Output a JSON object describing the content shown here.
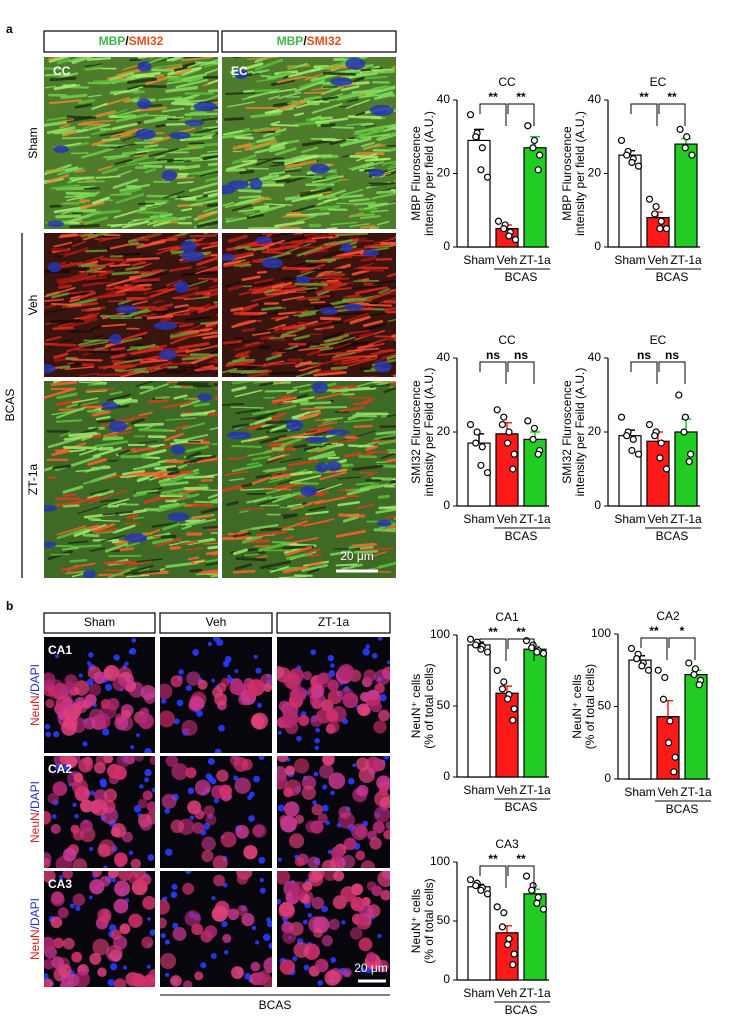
{
  "panel_a": {
    "label": "a",
    "headers": [
      {
        "stain1": "MBP",
        "sep": "/",
        "stain2": "SMI32"
      },
      {
        "stain1": "MBP",
        "sep": "/",
        "stain2": "SMI32"
      }
    ],
    "regions": [
      "CC",
      "EC"
    ],
    "rows": [
      "Sham",
      "Veh",
      "ZT-1a"
    ],
    "group": "BCAS",
    "scale_bar": "20 μm"
  },
  "panel_b": {
    "label": "b",
    "columns": [
      "Sham",
      "Veh",
      "ZT-1a"
    ],
    "regions": [
      "CA1",
      "CA2",
      "CA3"
    ],
    "row_stains": [
      {
        "marker": "NeuN",
        "counterstain": "/DAPI"
      },
      {
        "marker": "NeuN",
        "counterstain": "/DAPI"
      },
      {
        "marker": "NeuN",
        "counterstain": "/DAPI"
      }
    ],
    "group": "BCAS",
    "scale_bar": "20 μm"
  },
  "chart_data": [
    {
      "type": "bar",
      "title": "CC",
      "ylabel": [
        "MBP Fluroscence",
        "intensity per field (A.U.)"
      ],
      "categories": [
        "Sham",
        "Veh",
        "ZT-1a"
      ],
      "values": [
        29,
        5,
        27
      ],
      "errors": [
        3,
        1,
        3
      ],
      "points": [
        [
          36,
          31,
          30,
          27,
          21,
          19
        ],
        [
          7,
          6,
          5,
          4,
          3,
          2
        ],
        [
          33,
          29,
          27,
          25,
          21
        ]
      ],
      "colors": [
        "#ffffff",
        "#ff1a1a",
        "#22cc22"
      ],
      "group_label": "BCAS",
      "significance": [
        "**",
        "**"
      ],
      "ylim": [
        0,
        40
      ],
      "yticks": [
        0,
        20,
        40
      ]
    },
    {
      "type": "bar",
      "title": "EC",
      "ylabel": [
        "MBP Fluroscence",
        "intensity per field (A.U.)"
      ],
      "categories": [
        "Sham",
        "Veh",
        "ZT-1a"
      ],
      "values": [
        25,
        8,
        28
      ],
      "errors": [
        1.2,
        1.5,
        1.5
      ],
      "points": [
        [
          29,
          26,
          25,
          24,
          23,
          22
        ],
        [
          13,
          11,
          9,
          7,
          5,
          5
        ],
        [
          32,
          30,
          27,
          25
        ]
      ],
      "colors": [
        "#ffffff",
        "#ff1a1a",
        "#22cc22"
      ],
      "group_label": "BCAS",
      "significance": [
        "**",
        "**"
      ],
      "ylim": [
        0,
        40
      ],
      "yticks": [
        0,
        20,
        40
      ]
    },
    {
      "type": "bar",
      "title": "CC",
      "ylabel": [
        "SMI32 Fluroscence",
        "intensity per Feild (A.U.)"
      ],
      "categories": [
        "Sham",
        "Veh",
        "ZT-1a"
      ],
      "values": [
        17,
        19.5,
        18
      ],
      "errors": [
        2.5,
        3,
        2
      ],
      "points": [
        [
          22,
          20,
          17,
          16,
          11,
          9
        ],
        [
          26,
          24,
          22,
          20,
          17,
          14,
          10
        ],
        [
          23,
          21,
          18,
          15,
          14
        ]
      ],
      "colors": [
        "#ffffff",
        "#ff1a1a",
        "#22cc22"
      ],
      "group_label": "BCAS",
      "significance": [
        "ns",
        "ns"
      ],
      "ylim": [
        0,
        40
      ],
      "yticks": [
        0,
        20,
        40
      ]
    },
    {
      "type": "bar",
      "title": "EC",
      "ylabel": [
        "SMI32 Fluroscence",
        "intensity per Feild (A.U.)"
      ],
      "categories": [
        "Sham",
        "Veh",
        "ZT-1a"
      ],
      "values": [
        19,
        17.5,
        20
      ],
      "errors": [
        1.5,
        2.5,
        3.5
      ],
      "points": [
        [
          24,
          20,
          19,
          18,
          15,
          14
        ],
        [
          22,
          20,
          19,
          17,
          13,
          10
        ],
        [
          30,
          24,
          20,
          14,
          12
        ]
      ],
      "colors": [
        "#ffffff",
        "#ff1a1a",
        "#22cc22"
      ],
      "group_label": "BCAS",
      "significance": [
        "ns",
        "ns"
      ],
      "ylim": [
        0,
        40
      ],
      "yticks": [
        0,
        20,
        40
      ]
    },
    {
      "type": "bar",
      "title": "CA1",
      "ylabel": [
        "NeuN⁺ cells",
        "(% of total cells)"
      ],
      "categories": [
        "Sham",
        "Veh",
        "ZT-1a"
      ],
      "values": [
        93,
        59,
        90
      ],
      "errors": [
        2,
        5,
        2
      ],
      "points": [
        [
          97,
          95,
          93,
          92,
          90,
          88
        ],
        [
          75,
          67,
          62,
          58,
          55,
          48,
          40
        ],
        [
          96,
          93,
          91,
          89,
          88,
          87
        ]
      ],
      "colors": [
        "#ffffff",
        "#ff1a1a",
        "#22cc22"
      ],
      "group_label": "BCAS",
      "significance": [
        "**",
        "**"
      ],
      "ylim": [
        0,
        100
      ],
      "yticks": [
        0,
        50,
        100
      ]
    },
    {
      "type": "bar",
      "title": "CA2",
      "ylabel": [
        "NeuN⁺ cells",
        "(% of total cells)"
      ],
      "categories": [
        "Sham",
        "Veh",
        "ZT-1a"
      ],
      "values": [
        82,
        43,
        72
      ],
      "errors": [
        3,
        11,
        3
      ],
      "points": [
        [
          90,
          86,
          83,
          80,
          78,
          75
        ],
        [
          75,
          70,
          55,
          40,
          25,
          15,
          5
        ],
        [
          80,
          76,
          72,
          68,
          65
        ]
      ],
      "colors": [
        "#ffffff",
        "#ff1a1a",
        "#22cc22"
      ],
      "group_label": "BCAS",
      "significance": [
        "**",
        "*"
      ],
      "ylim": [
        0,
        100
      ],
      "yticks": [
        0,
        50,
        100
      ]
    },
    {
      "type": "bar",
      "title": "CA3",
      "ylabel": [
        "NeuN⁺ cells",
        "(% of total cells)"
      ],
      "categories": [
        "Sham",
        "Veh",
        "ZT-1a"
      ],
      "values": [
        79,
        40,
        73
      ],
      "errors": [
        2,
        6,
        4
      ],
      "points": [
        [
          85,
          82,
          80,
          78,
          76,
          73
        ],
        [
          62,
          57,
          45,
          35,
          30,
          22,
          13
        ],
        [
          88,
          80,
          76,
          70,
          65,
          60
        ]
      ],
      "colors": [
        "#ffffff",
        "#ff1a1a",
        "#22cc22"
      ],
      "group_label": "BCAS",
      "significance": [
        "**",
        "**"
      ],
      "ylim": [
        0,
        100
      ],
      "yticks": [
        0,
        50,
        100
      ]
    }
  ]
}
